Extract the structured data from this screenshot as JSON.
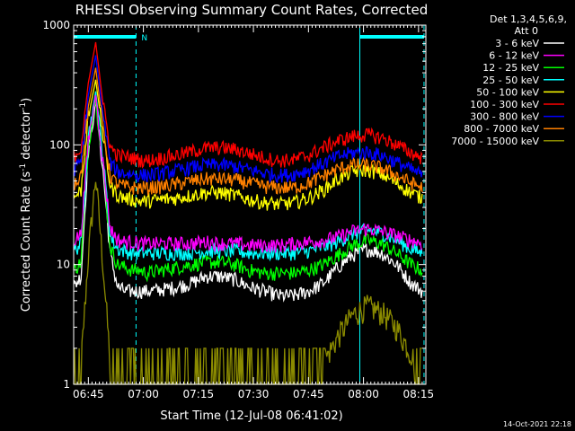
{
  "chart_data": {
    "type": "line",
    "title": "RHESSI Observing Summary Count Rates, Corrected",
    "xlabel": "Start Time (12-Jul-08 06:41:02)",
    "ylabel_main": "Corrected Count Rate (s",
    "ylabel_sup1": "-1",
    "ylabel_mid": " detector",
    "ylabel_sup2": "-1",
    "ylabel_end": ")",
    "y_scale": "log",
    "ylim": [
      1,
      1000
    ],
    "xlim_minutes": [
      0,
      96
    ],
    "x_ticks": [
      {
        "label": "06:45",
        "minute": 4
      },
      {
        "label": "07:00",
        "minute": 19
      },
      {
        "label": "07:15",
        "minute": 34
      },
      {
        "label": "07:30",
        "minute": 49
      },
      {
        "label": "07:45",
        "minute": 64
      },
      {
        "label": "08:00",
        "minute": 79
      },
      {
        "label": "08:15",
        "minute": 94
      }
    ],
    "y_ticks": [
      {
        "label": "1",
        "value": 1
      },
      {
        "label": "10",
        "value": 10
      },
      {
        "label": "100",
        "value": 100
      },
      {
        "label": "1000",
        "value": 1000
      }
    ],
    "legend_header": [
      "Det 1,3,4,5,6,9,",
      "Att 0"
    ],
    "legend_position": "right",
    "night_marker": "N",
    "night_intervals_minutes": [
      [
        0,
        17
      ],
      [
        78,
        95.5
      ]
    ],
    "x": [
      0,
      2,
      4,
      6,
      8,
      10,
      12,
      14,
      16,
      18,
      20,
      24,
      28,
      32,
      36,
      40,
      44,
      48,
      52,
      56,
      60,
      64,
      68,
      72,
      76,
      80,
      84,
      88,
      92,
      95
    ],
    "series": [
      {
        "name": "3 - 6 keV",
        "color": "#ffffff",
        "values": [
          6.5,
          8,
          90,
          230,
          60,
          12,
          6.5,
          6,
          6,
          6,
          6,
          6.2,
          6.5,
          7,
          8,
          8,
          7.5,
          6.5,
          6,
          5.5,
          5.5,
          6,
          7,
          9.5,
          12,
          13.5,
          12.5,
          10,
          7,
          6
        ]
      },
      {
        "name": "6 - 12 keV",
        "color": "#ff00ff",
        "values": [
          16,
          18,
          110,
          260,
          70,
          20,
          16,
          15.5,
          15.5,
          15,
          15,
          15,
          15,
          15,
          15.5,
          15,
          15,
          14.5,
          14.5,
          14.5,
          15,
          15.5,
          16,
          17,
          19,
          20,
          19,
          17.5,
          16,
          15
        ]
      },
      {
        "name": "12 - 25 keV",
        "color": "#00ff00",
        "values": [
          9,
          10.5,
          100,
          240,
          70,
          14,
          10,
          9.5,
          9,
          9,
          8.5,
          9,
          9.5,
          10,
          10.5,
          10.5,
          10,
          9,
          8.5,
          8.5,
          8.5,
          9,
          10,
          12,
          14.5,
          16,
          15,
          12.5,
          10,
          9
        ]
      },
      {
        "name": "25 - 50 keV",
        "color": "#00ffff",
        "values": [
          13,
          15,
          120,
          280,
          80,
          17,
          13.5,
          13,
          12.5,
          12.5,
          12.5,
          12.5,
          12.5,
          12.5,
          13,
          13,
          13,
          12.5,
          12.5,
          12.5,
          12.5,
          13,
          14,
          15.5,
          18,
          19.5,
          18.5,
          16,
          13.5,
          12.5
        ]
      },
      {
        "name": "50 - 100 keV",
        "color": "#ffff00",
        "values": [
          36,
          42,
          170,
          350,
          120,
          45,
          38,
          36,
          35,
          34,
          34,
          35,
          36,
          38,
          40,
          40,
          38,
          35,
          33,
          32,
          33,
          36,
          42,
          52,
          60,
          62,
          57,
          48,
          40,
          36
        ]
      },
      {
        "name": "100 - 300 keV",
        "color": "#ff0000",
        "values": [
          80,
          95,
          330,
          720,
          220,
          95,
          82,
          80,
          78,
          75,
          74,
          78,
          82,
          88,
          94,
          95,
          92,
          85,
          78,
          74,
          75,
          82,
          95,
          108,
          118,
          122,
          115,
          100,
          86,
          78
        ]
      },
      {
        "name": "300 - 800 keV",
        "color": "#0000ff",
        "values": [
          62,
          72,
          260,
          560,
          180,
          70,
          60,
          58,
          57,
          56,
          56,
          58,
          61,
          65,
          68,
          68,
          66,
          62,
          58,
          56,
          57,
          62,
          70,
          80,
          86,
          87,
          82,
          72,
          62,
          56
        ]
      },
      {
        "name": "800 - 7000 keV",
        "color": "#ff8000",
        "values": [
          48,
          56,
          210,
          440,
          140,
          55,
          47,
          45,
          44,
          44,
          44,
          45,
          47,
          50,
          52,
          52,
          51,
          48,
          45,
          44,
          44,
          48,
          55,
          63,
          68,
          68,
          64,
          56,
          48,
          44
        ]
      },
      {
        "name": "7000 - 15000 keV",
        "color": "#8b8b00",
        "values": [
          1,
          1.5,
          12,
          55,
          10,
          1.5,
          1,
          1,
          1,
          1,
          1,
          1,
          1,
          1.2,
          1.3,
          1.2,
          1,
          1,
          1,
          1,
          1,
          1.2,
          1.5,
          2.5,
          3.8,
          4.5,
          4,
          3,
          1.8,
          1.2
        ]
      }
    ]
  },
  "footer": {
    "timestamp": "14-Oct-2021 22:18"
  },
  "colors": {
    "background": "#000000",
    "axes": "#ffffff",
    "night_bar": "#00ffff"
  }
}
